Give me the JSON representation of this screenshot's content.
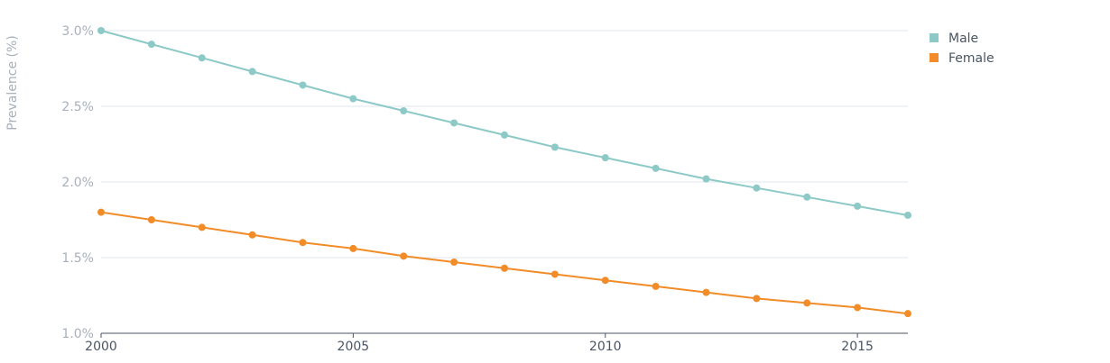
{
  "chart_data": {
    "type": "line",
    "ylabel": "Prevalence (%)",
    "ylim": [
      1.0,
      3.0
    ],
    "yticks": [
      1.0,
      1.5,
      2.0,
      2.5,
      3.0
    ],
    "ytick_labels": [
      "1.0%",
      "1.5%",
      "2.0%",
      "2.5%",
      "3.0%"
    ],
    "xlim": [
      2000,
      2016
    ],
    "xticks": [
      2000,
      2005,
      2010,
      2015
    ],
    "xtick_labels": [
      "2000",
      "2005",
      "2010",
      "2015"
    ],
    "x": [
      2000,
      2001,
      2002,
      2003,
      2004,
      2005,
      2006,
      2007,
      2008,
      2009,
      2010,
      2011,
      2012,
      2013,
      2014,
      2015,
      2016
    ],
    "grid": true,
    "legend_position": "top-right",
    "series": [
      {
        "name": "Male",
        "color": "#8cc9c7",
        "values": [
          3.0,
          2.91,
          2.82,
          2.73,
          2.64,
          2.55,
          2.47,
          2.39,
          2.31,
          2.23,
          2.16,
          2.09,
          2.02,
          1.96,
          1.9,
          1.84,
          1.78
        ]
      },
      {
        "name": "Female",
        "color": "#f28c28",
        "values": [
          1.8,
          1.75,
          1.7,
          1.65,
          1.6,
          1.56,
          1.51,
          1.47,
          1.43,
          1.39,
          1.35,
          1.31,
          1.27,
          1.23,
          1.2,
          1.17,
          1.13
        ]
      }
    ]
  }
}
